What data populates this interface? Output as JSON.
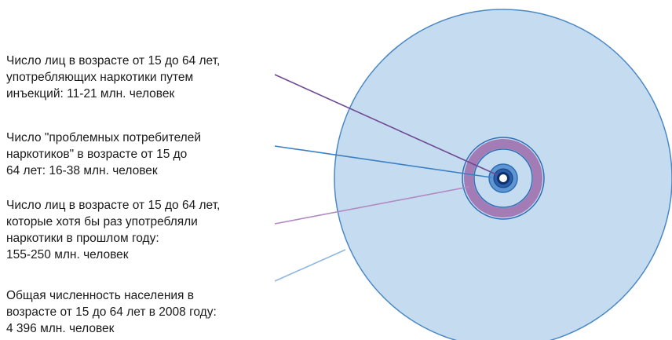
{
  "diagram": {
    "labels": [
      {
        "text": "Число лиц в возрасте от 15 до 64 лет,\nупотребляющих наркотики путем\nинъекций: 11-21 млн. человек",
        "color": "#6f4a93"
      },
      {
        "text": "Число \"проблемных потребителей\nнаркотиков\" в возрасте от 15 до\n64 лет: 16-38 млн. человек",
        "color": "#3b7fc4"
      },
      {
        "text": "Число лиц в возрасте от 15 до 64 лет,\nкоторые хотя бы раз употребляли\nнаркотики в прошлом году:\n155-250 млн. человек",
        "color": "#b088c2"
      },
      {
        "text": "Общая численность населения в\nвозрасте от 15 до 64 лет в 2008 году:\n4 396 млн. человек",
        "color": "#8fb8de"
      }
    ],
    "colors": {
      "population_fill": "#c5dcf0",
      "population_stroke": "#4a88c5",
      "annual_users_ring": "#a37bb5",
      "problem_users_ring": "#2f6db5",
      "idu_core": "#0f2e6b"
    }
  }
}
